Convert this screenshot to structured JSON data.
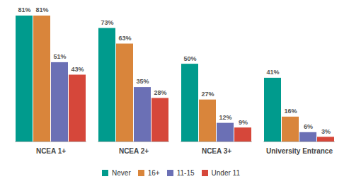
{
  "chart_data": {
    "type": "bar",
    "categories": [
      "NCEA 1+",
      "NCEA 2+",
      "NCEA 3+",
      "University Entrance"
    ],
    "series": [
      {
        "name": "Never",
        "color": "#009b8d",
        "values": [
          81,
          73,
          50,
          41
        ],
        "value_labels": [
          "81%",
          "73%",
          "50%",
          "41%"
        ]
      },
      {
        "name": "16+",
        "color": "#d9853b",
        "values": [
          81,
          63,
          27,
          16
        ],
        "value_labels": [
          "81%",
          "63%",
          "27%",
          "16%"
        ]
      },
      {
        "name": "11-15",
        "color": "#6b70b5",
        "values": [
          51,
          35,
          12,
          6
        ],
        "value_labels": [
          "51%",
          "35%",
          "12%",
          "6%"
        ]
      },
      {
        "name": "Under 11",
        "color": "#d6473a",
        "values": [
          43,
          28,
          9,
          3
        ],
        "value_labels": [
          "43%",
          "28%",
          "9%",
          "3%"
        ]
      }
    ],
    "ylim": [
      0,
      81
    ],
    "data_labels": true,
    "tick_labels": "x",
    "legend": "bottom"
  }
}
